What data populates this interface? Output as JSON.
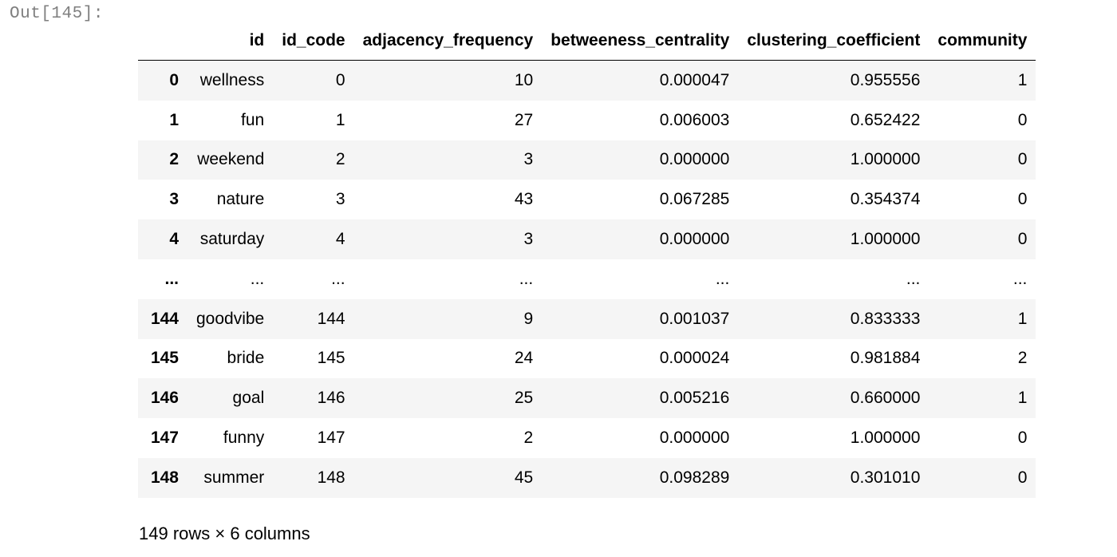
{
  "output": {
    "prompt": "Out[145]:"
  },
  "dataframe": {
    "index_header": "",
    "columns": [
      "id",
      "id_code",
      "adjacency_frequency",
      "betweeness_centrality",
      "clustering_coefficient",
      "community"
    ],
    "rows": [
      {
        "index": "0",
        "cells": [
          "wellness",
          "0",
          "10",
          "0.000047",
          "0.955556",
          "1"
        ]
      },
      {
        "index": "1",
        "cells": [
          "fun",
          "1",
          "27",
          "0.006003",
          "0.652422",
          "0"
        ]
      },
      {
        "index": "2",
        "cells": [
          "weekend",
          "2",
          "3",
          "0.000000",
          "1.000000",
          "0"
        ]
      },
      {
        "index": "3",
        "cells": [
          "nature",
          "3",
          "43",
          "0.067285",
          "0.354374",
          "0"
        ]
      },
      {
        "index": "4",
        "cells": [
          "saturday",
          "4",
          "3",
          "0.000000",
          "1.000000",
          "0"
        ]
      },
      {
        "index": "...",
        "cells": [
          "...",
          "...",
          "...",
          "...",
          "...",
          "..."
        ]
      },
      {
        "index": "144",
        "cells": [
          "goodvibe",
          "144",
          "9",
          "0.001037",
          "0.833333",
          "1"
        ]
      },
      {
        "index": "145",
        "cells": [
          "bride",
          "145",
          "24",
          "0.000024",
          "0.981884",
          "2"
        ]
      },
      {
        "index": "146",
        "cells": [
          "goal",
          "146",
          "25",
          "0.005216",
          "0.660000",
          "1"
        ]
      },
      {
        "index": "147",
        "cells": [
          "funny",
          "147",
          "2",
          "0.000000",
          "1.000000",
          "0"
        ]
      },
      {
        "index": "148",
        "cells": [
          "summer",
          "148",
          "45",
          "0.098289",
          "0.301010",
          "0"
        ]
      }
    ],
    "shape_text": "149 rows × 6 columns"
  }
}
